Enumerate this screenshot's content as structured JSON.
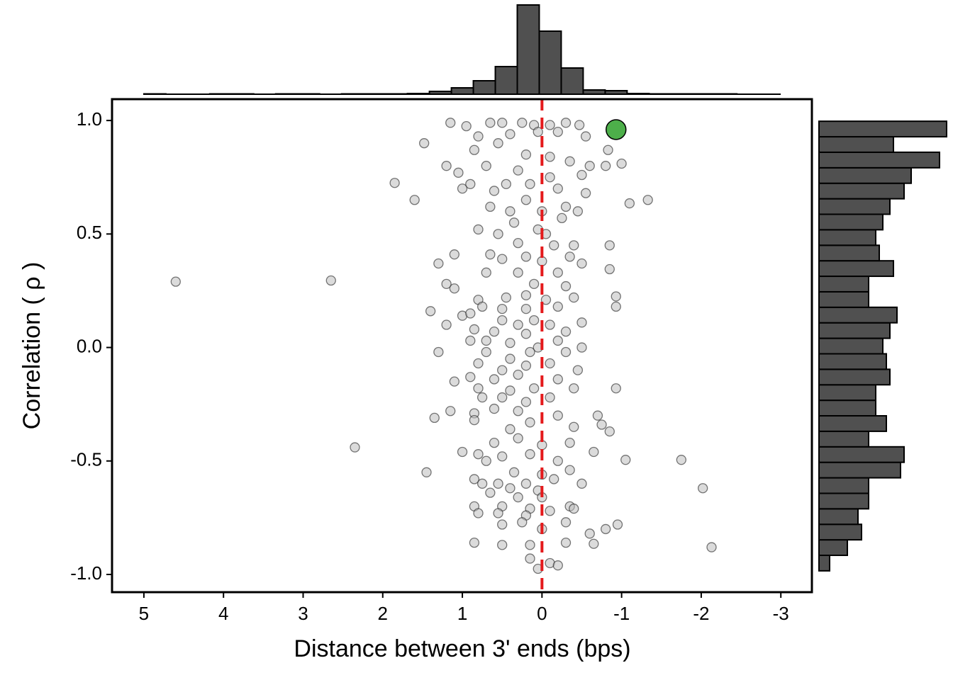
{
  "chart_data": {
    "type": "scatter",
    "x_label": "Distance between 3' ends (bps)",
    "y_label": "Correlation ( ρ )",
    "xlim": [
      5.4,
      -3.39
    ],
    "ylim": [
      -1.078,
      1.094
    ],
    "xticks": [
      5,
      4,
      3,
      2,
      1,
      0,
      -1,
      -2,
      -3
    ],
    "yticks": [
      {
        "value": 1,
        "label": "1.0"
      },
      0.5,
      {
        "value": 0,
        "label": "0.0"
      },
      -0.5,
      {
        "value": -1,
        "label": "-1.0"
      }
    ],
    "color": "#bdbdbd",
    "x": [
      1.15,
      0.95,
      0.65,
      0.5,
      0.25,
      0.1,
      -0.1,
      -0.3,
      -0.47,
      0.8,
      0.4,
      -0.2,
      0.05,
      0.85,
      0.55,
      -0.55,
      1.48,
      -0.83,
      -1.0,
      -0.8,
      0.2,
      -0.1,
      1.2,
      1.05,
      0.7,
      0.3,
      -0.35,
      -0.6,
      1.0,
      0.9,
      0.6,
      0.15,
      -0.1,
      -0.5,
      -0.55,
      1.85,
      1.6,
      0.45,
      -0.2,
      0.2,
      -0.3,
      -0.45,
      0,
      0.4,
      0.65,
      -1.1,
      -1.33,
      0.35,
      0.05,
      -0.25,
      -0.05,
      0.8,
      0.55,
      0.3,
      -0.15,
      -0.4,
      -0.85,
      1.1,
      0.65,
      0.5,
      0.2,
      0,
      -0.35,
      -0.5,
      1.3,
      0.7,
      0.3,
      -0.2,
      -0.85,
      1.2,
      0.1,
      -0.3,
      4.6,
      2.65,
      1.1,
      0.8,
      0.45,
      0.2,
      -0.05,
      -0.4,
      -0.93,
      -0.93,
      0.75,
      0.5,
      0.2,
      -0.2,
      1.4,
      1,
      0.9,
      0.5,
      0.3,
      0.1,
      -0.1,
      -0.5,
      1.2,
      0.85,
      0.6,
      0.2,
      -0.3,
      0.9,
      0.7,
      0.4,
      0.05,
      -0.2,
      -0.5,
      1.3,
      0.7,
      0.4,
      0.15,
      -0.3,
      0.8,
      0.5,
      0.2,
      -0.1,
      -0.45,
      0.9,
      0.6,
      0.3,
      -0.2,
      1.1,
      0.8,
      0.4,
      0.1,
      -0.4,
      -0.93,
      0.75,
      0.5,
      0.2,
      -0.1,
      1.15,
      0.85,
      0.6,
      0.3,
      -0.2,
      -0.7,
      1.35,
      0.85,
      0.4,
      0.15,
      -0.4,
      -0.85,
      -0.75,
      2.35,
      0.6,
      0.3,
      0,
      -0.35,
      -0.65,
      1,
      0.8,
      0.5,
      0.15,
      -0.2,
      -1.05,
      -1.75,
      1.45,
      0.7,
      0.35,
      0,
      -0.35,
      0.85,
      0.55,
      0.2,
      -0.15,
      -0.5,
      0.75,
      0.4,
      0.05,
      -2.02,
      0.65,
      0.3,
      0,
      0.85,
      0.5,
      0.15,
      -0.35,
      0.8,
      0.55,
      0.2,
      -0.1,
      -0.4,
      0.5,
      0.25,
      0,
      -0.3,
      -0.6,
      -0.8,
      -0.95,
      0.85,
      0.5,
      0.15,
      -0.3,
      -0.65,
      -2.13,
      0.15,
      -0.1,
      -0.2,
      0.05
    ],
    "values": [
      0.99,
      0.975,
      0.99,
      0.99,
      0.99,
      0.98,
      0.98,
      0.99,
      0.98,
      0.93,
      0.94,
      0.95,
      0.95,
      0.87,
      0.9,
      0.93,
      0.9,
      0.87,
      0.81,
      0.8,
      0.85,
      0.84,
      0.8,
      0.77,
      0.8,
      0.78,
      0.82,
      0.8,
      0.7,
      0.72,
      0.69,
      0.72,
      0.75,
      0.76,
      0.68,
      0.725,
      0.65,
      0.72,
      0.7,
      0.65,
      0.62,
      0.6,
      0.6,
      0.6,
      0.62,
      0.635,
      0.65,
      0.55,
      0.52,
      0.57,
      0.5,
      0.52,
      0.5,
      0.46,
      0.45,
      0.45,
      0.45,
      0.41,
      0.41,
      0.39,
      0.4,
      0.38,
      0.4,
      0.37,
      0.37,
      0.33,
      0.33,
      0.33,
      0.345,
      0.28,
      0.28,
      0.27,
      0.29,
      0.295,
      0.26,
      0.21,
      0.22,
      0.23,
      0.21,
      0.22,
      0.225,
      0.18,
      0.18,
      0.17,
      0.17,
      0.18,
      0.16,
      0.14,
      0.15,
      0.12,
      0.1,
      0.12,
      0.1,
      0.11,
      0.1,
      0.08,
      0.07,
      0.06,
      0.07,
      0.03,
      0.03,
      0.02,
      0,
      0.03,
      0,
      -0.02,
      -0.02,
      -0.05,
      -0.02,
      -0.02,
      -0.07,
      -0.1,
      -0.08,
      -0.07,
      -0.1,
      -0.13,
      -0.14,
      -0.12,
      -0.14,
      -0.15,
      -0.18,
      -0.19,
      -0.18,
      -0.18,
      -0.18,
      -0.22,
      -0.22,
      -0.24,
      -0.22,
      -0.28,
      -0.29,
      -0.27,
      -0.28,
      -0.3,
      -0.3,
      -0.31,
      -0.32,
      -0.36,
      -0.33,
      -0.35,
      -0.37,
      -0.34,
      -0.44,
      -0.42,
      -0.4,
      -0.43,
      -0.42,
      -0.46,
      -0.46,
      -0.47,
      -0.48,
      -0.47,
      -0.5,
      -0.495,
      -0.495,
      -0.55,
      -0.5,
      -0.55,
      -0.56,
      -0.54,
      -0.58,
      -0.6,
      -0.6,
      -0.58,
      -0.6,
      -0.6,
      -0.62,
      -0.63,
      -0.62,
      -0.64,
      -0.66,
      -0.66,
      -0.7,
      -0.7,
      -0.71,
      -0.7,
      -0.73,
      -0.73,
      -0.74,
      -0.72,
      -0.71,
      -0.78,
      -0.77,
      -0.8,
      -0.77,
      -0.82,
      -0.8,
      -0.78,
      -0.86,
      -0.87,
      -0.87,
      -0.86,
      -0.865,
      -0.88,
      -0.93,
      -0.95,
      -0.96,
      -0.975
    ],
    "highlight": {
      "x": -0.93,
      "y": 0.96,
      "color": "#4daf4a"
    },
    "reference_line": {
      "x": 0,
      "color": "#e41a1c"
    },
    "top_histogram": {
      "color": "#505050",
      "bins": [
        -3,
        -2.7241,
        -2.4483,
        -2.1724,
        -1.8966,
        -1.6207,
        -1.3448,
        -1.069,
        -0.7931,
        -0.5172,
        -0.2414,
        0.0345,
        0.3103,
        0.5862,
        0.8621,
        1.1379,
        1.4138,
        1.6897,
        1.9655,
        2.2414,
        2.5172,
        2.7931,
        3.069,
        3.3448,
        3.6207,
        3.8966,
        4.1724,
        4.4483,
        4.7241,
        5
      ],
      "counts": [
        0,
        0,
        1,
        1,
        1,
        1,
        2,
        10,
        12,
        74,
        178,
        252,
        78,
        38,
        18,
        8,
        2,
        1,
        1,
        1,
        0,
        1,
        1,
        0,
        1,
        1,
        0,
        0,
        1
      ],
      "ylim": [
        0,
        252
      ]
    },
    "right_histogram": {
      "color": "#505050",
      "bins": [
        -0.984,
        -0.9157,
        -0.8474,
        -0.7791,
        -0.7108,
        -0.6425,
        -0.5742,
        -0.5059,
        -0.4376,
        -0.3693,
        -0.301,
        -0.2327,
        -0.1644,
        -0.0961,
        -0.0278,
        0.0405,
        0.1088,
        0.1771,
        0.2454,
        0.3137,
        0.382,
        0.4503,
        0.5186,
        0.5869,
        0.6552,
        0.7235,
        0.7918,
        0.8601,
        0.9284,
        0.9967
      ],
      "counts": [
        3,
        8,
        12,
        11,
        14,
        14,
        23,
        24,
        14,
        19,
        16,
        16,
        20,
        19,
        18,
        20,
        22,
        14,
        14,
        21,
        17,
        16,
        18,
        20,
        24,
        26,
        34,
        21,
        36
      ],
      "xlim": [
        0,
        36
      ]
    }
  }
}
